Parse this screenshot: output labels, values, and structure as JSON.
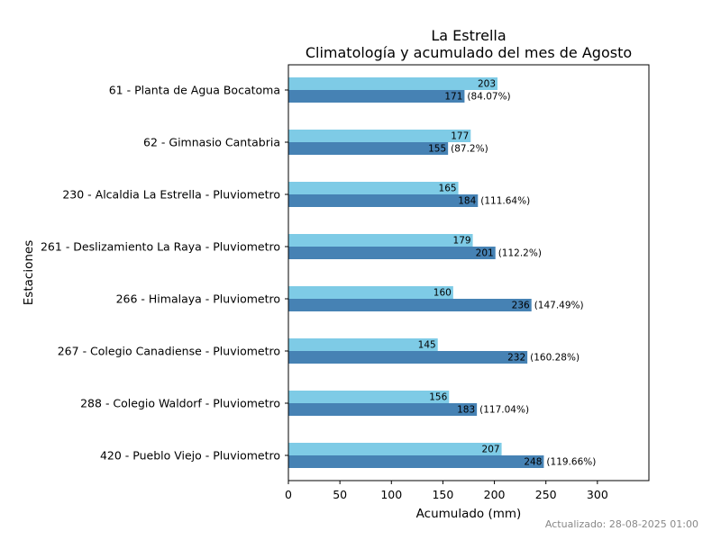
{
  "chart_data": {
    "type": "bar",
    "orientation": "horizontal",
    "title": "La Estrella",
    "subtitle": "Climatología y acumulado del mes de Agosto",
    "xlabel": "Acumulado (mm)",
    "ylabel": "Estaciones",
    "xlim": [
      0,
      350
    ],
    "xticks": [
      0,
      50,
      100,
      150,
      200,
      250,
      300
    ],
    "grid": false,
    "categories": [
      "61 - Planta de Agua Bocatoma",
      "62 - Gimnasio Cantabria",
      "230 - Alcaldia La Estrella - Pluviometro",
      "261 - Deslizamiento La Raya - Pluviometro",
      "266 - Himalaya - Pluviometro",
      "267 - Colegio Canadiense - Pluviometro",
      "288 - Colegio Waldorf - Pluviometro",
      "420 - Pueblo Viejo - Pluviometro"
    ],
    "series": [
      {
        "values": [
          203,
          177,
          165,
          179,
          160,
          145,
          156,
          207
        ],
        "labels": [
          "203",
          "177",
          "165",
          "179",
          "160",
          "145",
          "156",
          "207"
        ]
      },
      {
        "values": [
          171,
          155,
          184,
          201,
          236,
          232,
          183,
          248
        ],
        "labels": [
          "171",
          "155",
          "184",
          "201",
          "236",
          "232",
          "183",
          "248"
        ],
        "percent_labels": [
          "(84.07%)",
          "(87.2%)",
          "(111.64%)",
          "(112.2%)",
          "(147.49%)",
          "(160.28%)",
          "(117.04%)",
          "(119.66%)"
        ]
      }
    ],
    "colors": {
      "climatologia": "#7ecbe6",
      "acumulado": "#4682b4"
    }
  },
  "footer": {
    "updated": "Actualizado: 28-08-2025 01:00"
  }
}
